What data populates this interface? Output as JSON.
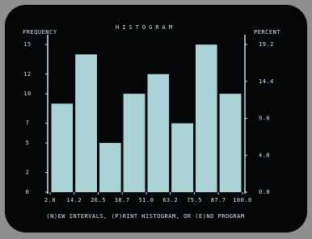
{
  "chart_data": {
    "type": "histogram",
    "title": "HISTOGRAM",
    "ylabel": "FREQUENCY",
    "y2label": "PERCENT",
    "bins": [
      2.0,
      14.2,
      26.5,
      38.7,
      51.0,
      63.2,
      75.5,
      87.7,
      100.0
    ],
    "values": [
      9,
      14,
      5,
      10,
      12,
      7,
      15,
      10
    ],
    "color": "#a9d3d6",
    "xlim": [
      2.0,
      100.0
    ],
    "xticks": [
      {
        "value": 2.0,
        "label": "2.0"
      },
      {
        "value": 14.2,
        "label": "14.2"
      },
      {
        "value": 26.5,
        "label": "26.5"
      },
      {
        "value": 38.7,
        "label": "38.7"
      },
      {
        "value": 51.0,
        "label": "51.0"
      },
      {
        "value": 63.2,
        "label": "63.2"
      },
      {
        "value": 75.5,
        "label": "75.5"
      },
      {
        "value": 87.7,
        "label": "87.7"
      },
      {
        "value": 100.0,
        "label": "100.0"
      }
    ],
    "ylim": [
      0,
      16
    ],
    "yticks": [
      0,
      2,
      5,
      7,
      10,
      12,
      15
    ],
    "y2lim": [
      0,
      20.48
    ],
    "y2ticks": [
      {
        "value": 0,
        "label": "0.0"
      },
      {
        "value": 4.8,
        "label": "4.8"
      },
      {
        "value": 9.6,
        "label": "9.6"
      },
      {
        "value": 14.4,
        "label": "14.4"
      },
      {
        "value": 19.2,
        "label": "19.2"
      }
    ],
    "footer": "(N)EW INTERVALS, (P)RINT HISTOGRAM, OR (E)ND PROGRAM"
  }
}
